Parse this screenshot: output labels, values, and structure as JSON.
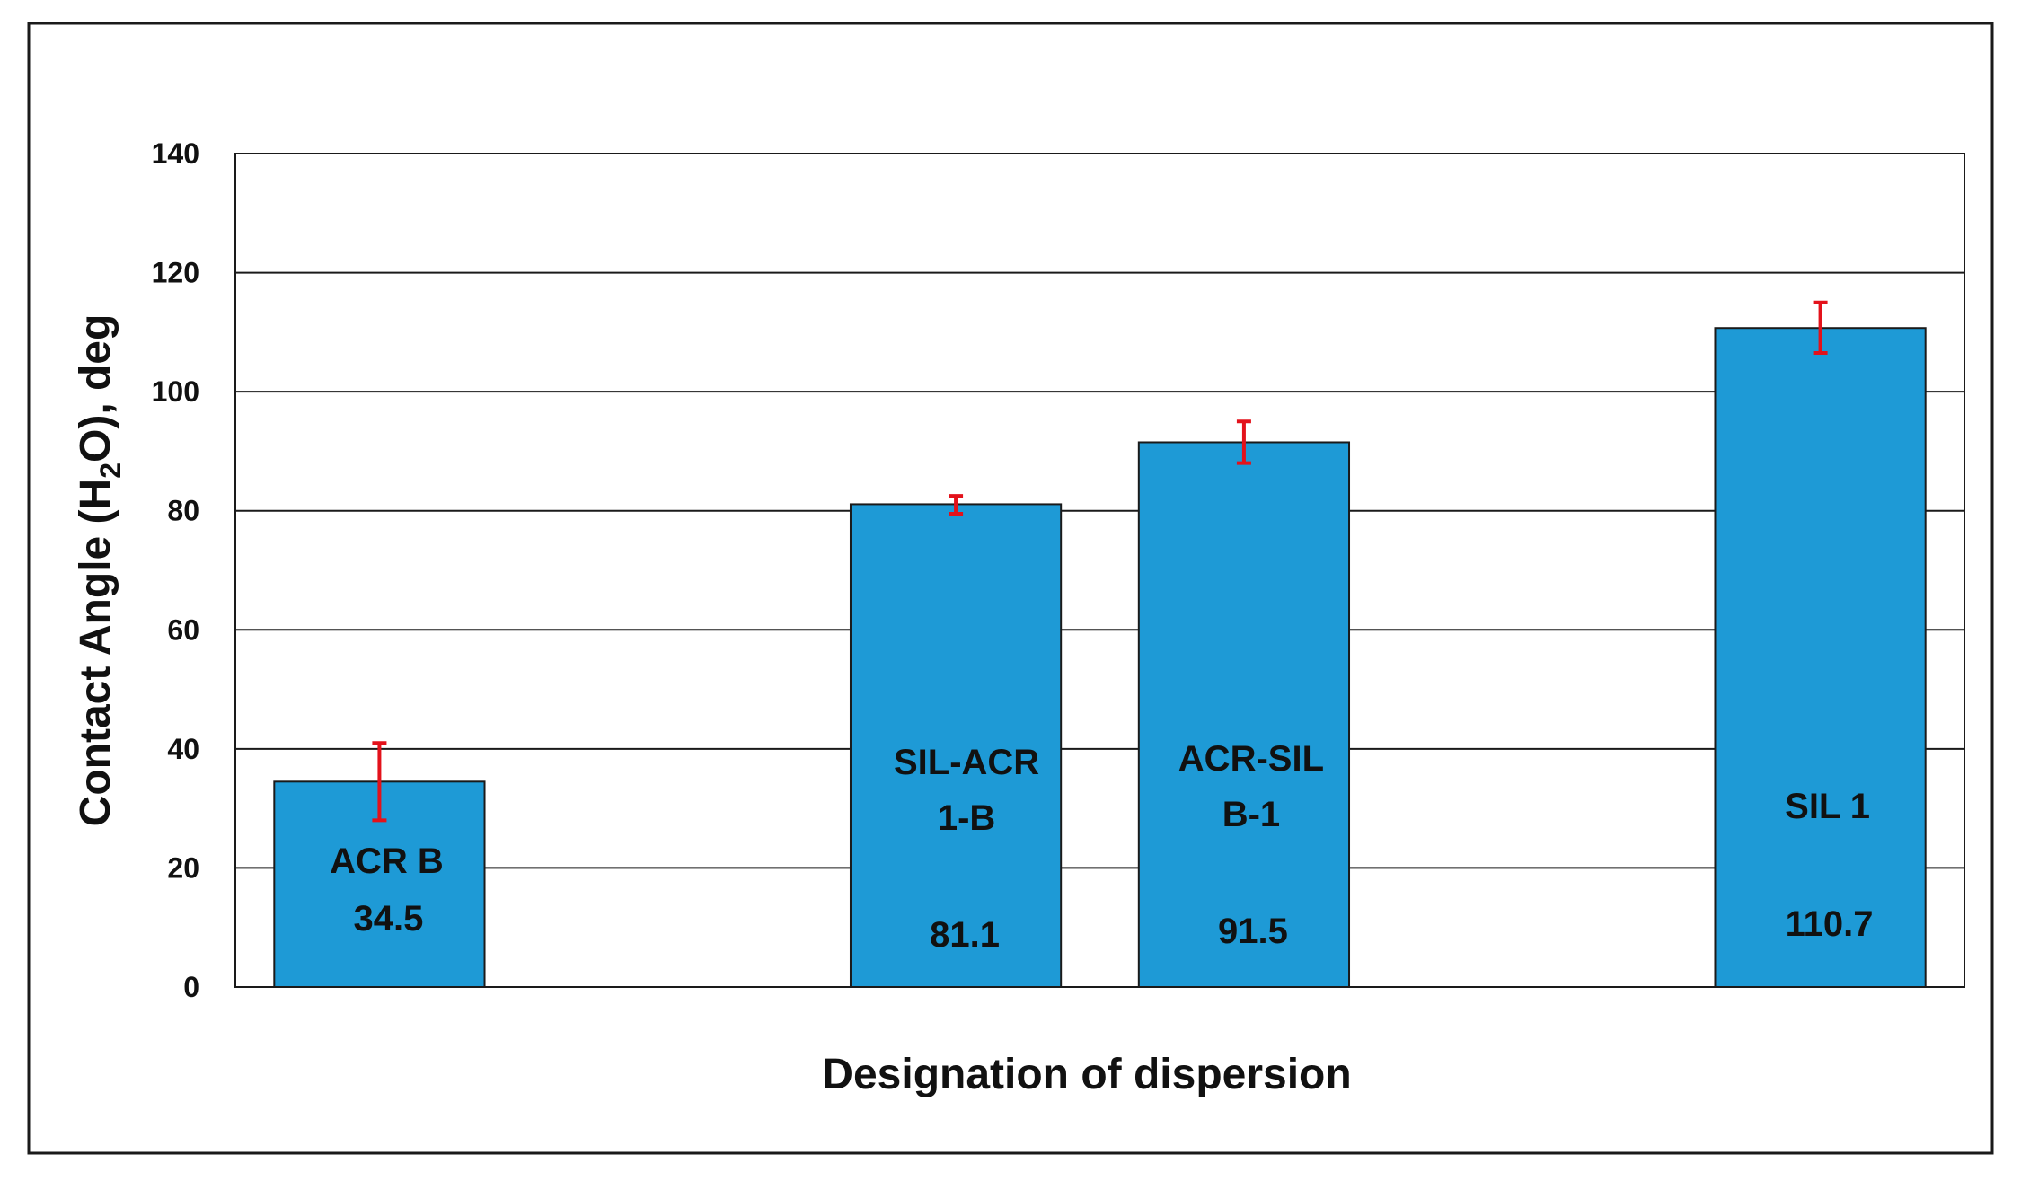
{
  "chart_data": {
    "type": "bar",
    "categories": [
      "ACR B",
      "",
      "SIL-ACR 1-B",
      "ACR-SIL B-1",
      "",
      "SIL 1"
    ],
    "bar_label_lines": [
      [
        "ACR B",
        "34.5"
      ],
      [],
      [
        "SIL-ACR",
        "1-B",
        "81.1"
      ],
      [
        "ACR-SIL",
        "B-1",
        "91.5"
      ],
      [],
      [
        "SIL 1",
        "110.7"
      ]
    ],
    "values": [
      34.5,
      null,
      81.1,
      91.5,
      null,
      110.7
    ],
    "error_low": [
      28,
      null,
      79.5,
      88,
      null,
      106.5
    ],
    "error_high": [
      41,
      null,
      82.5,
      95,
      null,
      115
    ],
    "ylim": [
      0,
      140
    ],
    "yticks": [
      0,
      20,
      40,
      60,
      80,
      100,
      120,
      140
    ],
    "xlabel": "Designation  of dispersion",
    "ylabel_parts": [
      "Contact Angle (H",
      "2",
      "O), deg"
    ],
    "grid": true,
    "bar_color": "#1e9ad6",
    "error_color": "#e3121b"
  }
}
